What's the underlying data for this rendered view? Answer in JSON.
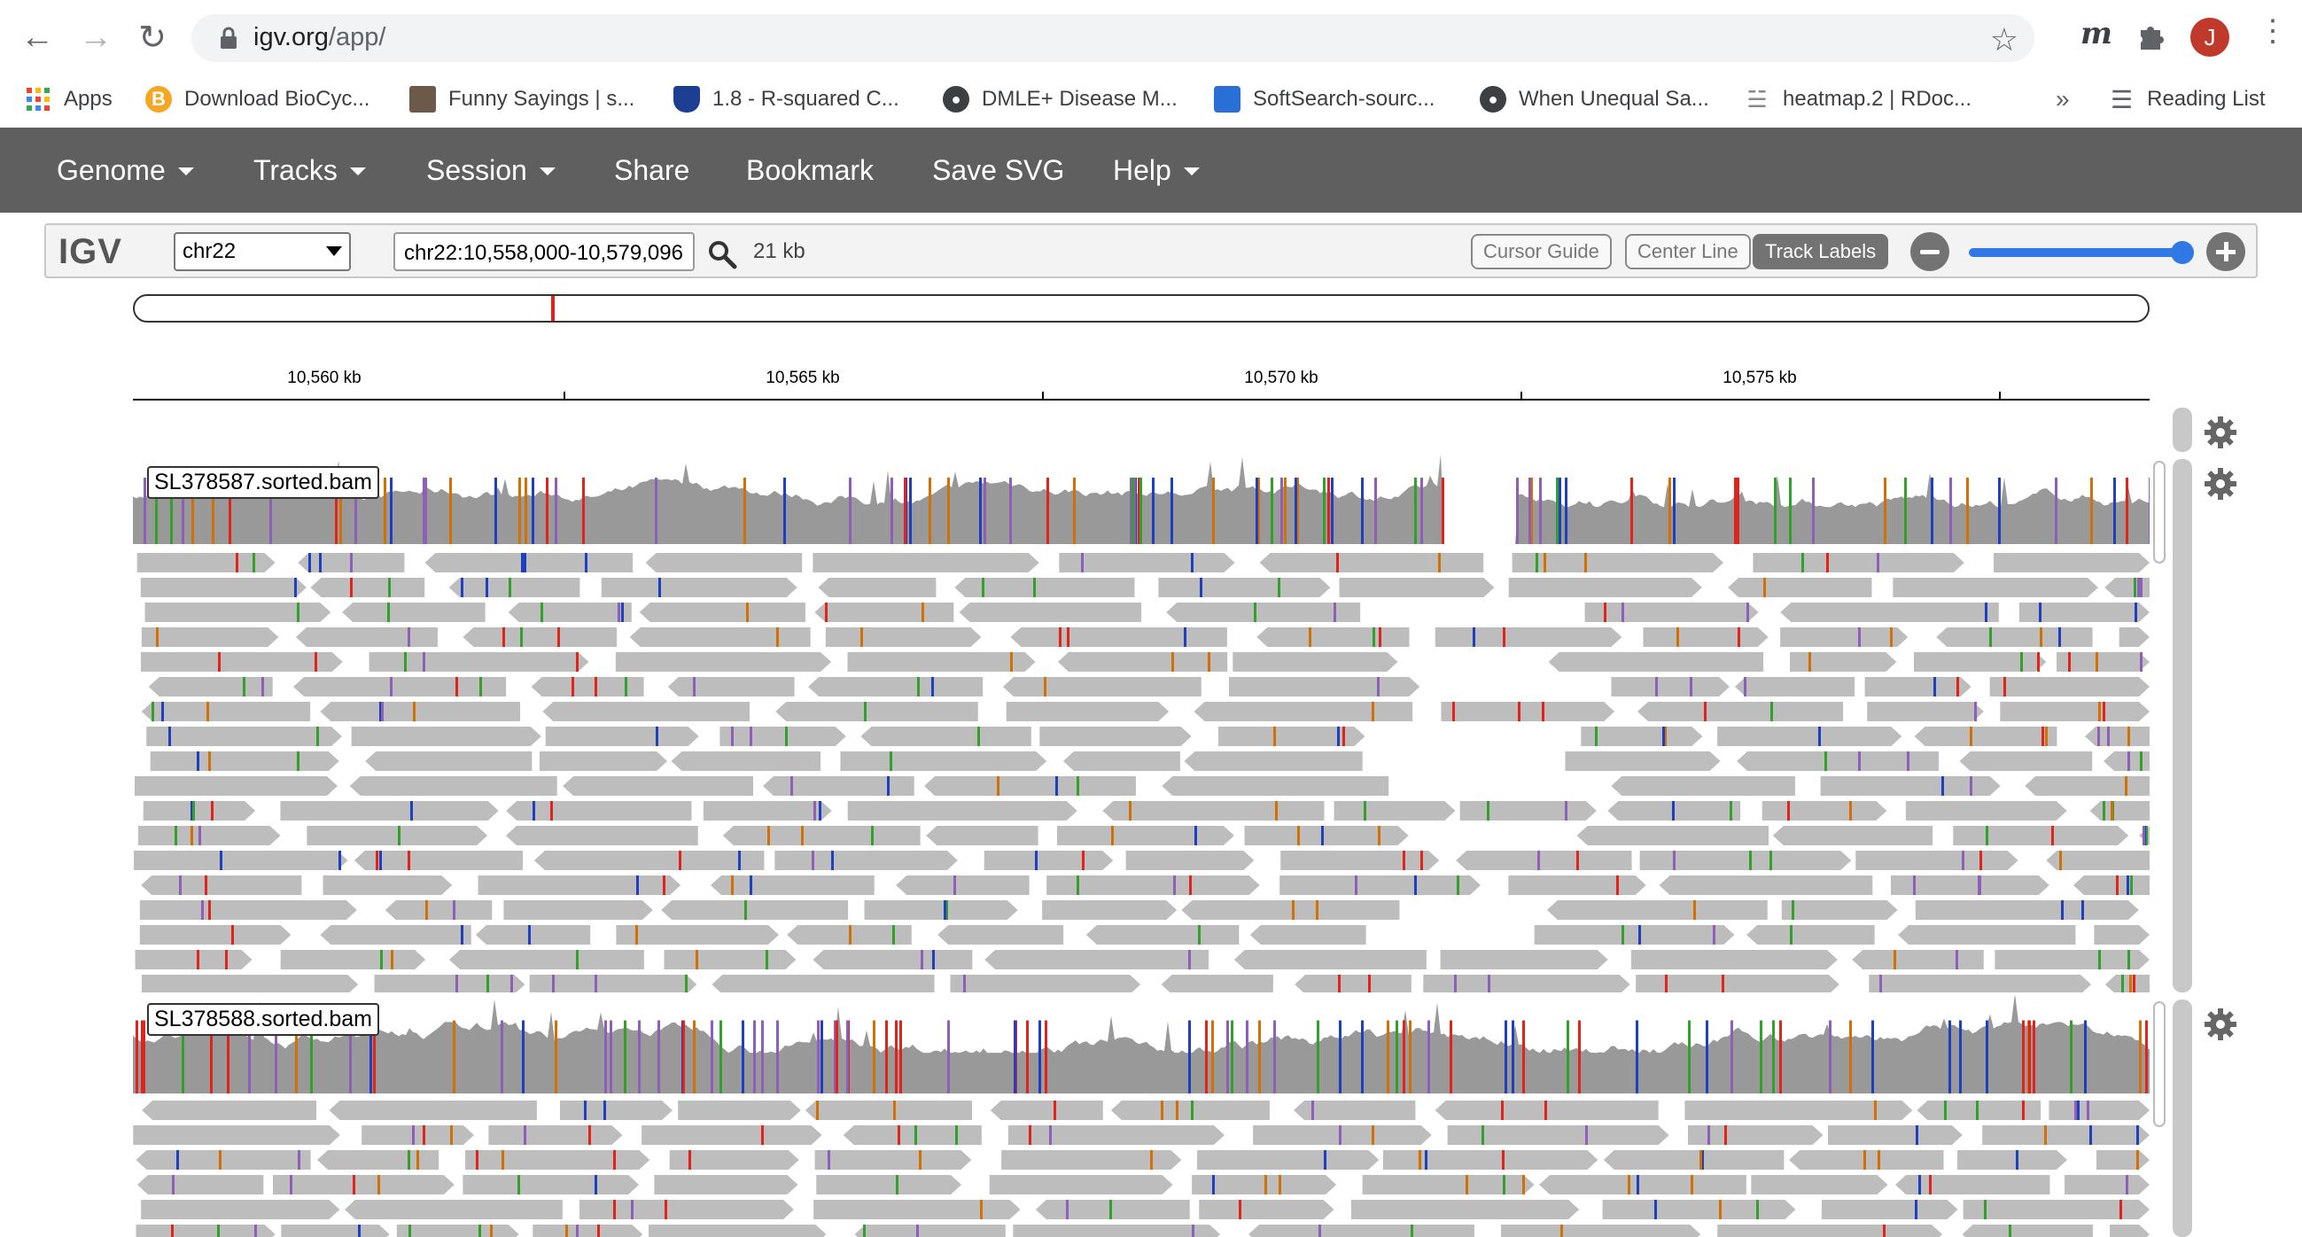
{
  "browser": {
    "url_host": "igv.org",
    "url_path": "/app/",
    "avatar_letter": "J",
    "bookmarks": [
      {
        "label": "Apps",
        "icon": "apps-grid-icon"
      },
      {
        "label": "Download BioCyc...",
        "icon": "biocyc-icon"
      },
      {
        "label": "Funny Sayings | s...",
        "icon": "dog-photo-icon"
      },
      {
        "label": "1.8 - R-squared C...",
        "icon": "shield-icon"
      },
      {
        "label": "DMLE+ Disease M...",
        "icon": "globe-icon"
      },
      {
        "label": "SoftSearch-sourc...",
        "icon": "house-icon"
      },
      {
        "label": "When Unequal Sa...",
        "icon": "globe-icon"
      },
      {
        "label": "heatmap.2 | RDoc...",
        "icon": "rdoc-icon"
      }
    ],
    "more_label": "»",
    "reading_list_label": "Reading List"
  },
  "igv": {
    "menu": [
      {
        "label": "Genome",
        "dropdown": true
      },
      {
        "label": "Tracks",
        "dropdown": true
      },
      {
        "label": "Session",
        "dropdown": true
      },
      {
        "label": "Share",
        "dropdown": false
      },
      {
        "label": "Bookmark",
        "dropdown": false
      },
      {
        "label": "Save SVG",
        "dropdown": false
      },
      {
        "label": "Help",
        "dropdown": true
      }
    ],
    "logo": "IGV",
    "chromosome": "chr22",
    "locus": "chr22:10,558,000-10,579,096",
    "window_size": "21 kb",
    "buttons": {
      "cursor_guide": "Cursor Guide",
      "center_line": "Center Line",
      "track_labels": "Track Labels"
    },
    "zoom_level": 0.95,
    "ruler_ticks": [
      "10,560 kb",
      "10,565 kb",
      "10,570 kb",
      "10,575 kb"
    ],
    "tracks": [
      {
        "name": "SL378587.sorted.bam"
      },
      {
        "name": "SL378588.sorted.bam"
      }
    ],
    "colors": {
      "nav_bg": "#5f5f5f",
      "coverage": "#999999",
      "read": "#bdbdbd",
      "A": "#33a02c",
      "C": "#1f3fbf",
      "G": "#d17105",
      "T": "#e0241b",
      "indel": "#8e5fb7",
      "ideogram_marker": "#e02020"
    }
  }
}
